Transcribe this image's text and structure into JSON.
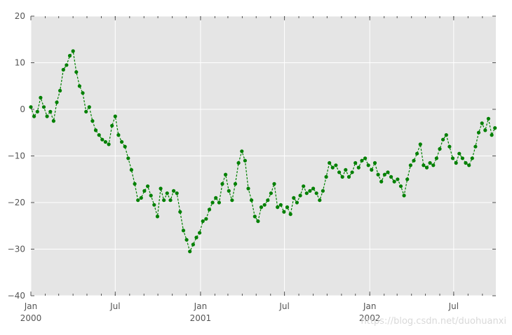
{
  "chart_data": {
    "type": "line",
    "title": "",
    "xlabel": "",
    "ylabel": "",
    "ylim": [
      -40,
      20
    ],
    "xlim": [
      "2000-01-01",
      "2002-09-30"
    ],
    "grid": true,
    "background": "#e5e5e5",
    "grid_color": "#ffffff",
    "series_color": "#008000",
    "y_ticks": [
      "−40",
      "−30",
      "−20",
      "−10",
      "0",
      "10",
      "20"
    ],
    "y_tick_values": [
      -40,
      -30,
      -20,
      -10,
      0,
      10,
      20
    ],
    "x_ticks": [
      {
        "date": "2000-01-01",
        "month": "Jan",
        "year": "2000"
      },
      {
        "date": "2000-07-01",
        "month": "Jul",
        "year": ""
      },
      {
        "date": "2001-01-01",
        "month": "Jan",
        "year": "2001"
      },
      {
        "date": "2001-07-01",
        "month": "Jul",
        "year": ""
      },
      {
        "date": "2002-01-01",
        "month": "Jan",
        "year": "2002"
      },
      {
        "date": "2002-07-01",
        "month": "Jul",
        "year": ""
      }
    ],
    "series": [
      {
        "points": [
          [
            "2000-01-01",
            0.5
          ],
          [
            "2000-01-08",
            -1.5
          ],
          [
            "2000-01-15",
            -0.5
          ],
          [
            "2000-01-22",
            2.5
          ],
          [
            "2000-01-29",
            0.5
          ],
          [
            "2000-02-05",
            -1.5
          ],
          [
            "2000-02-12",
            -0.5
          ],
          [
            "2000-02-19",
            -2.5
          ],
          [
            "2000-02-26",
            1.5
          ],
          [
            "2000-03-04",
            4.0
          ],
          [
            "2000-03-11",
            8.5
          ],
          [
            "2000-03-18",
            9.5
          ],
          [
            "2000-03-25",
            11.5
          ],
          [
            "2000-04-01",
            12.5
          ],
          [
            "2000-04-08",
            8.0
          ],
          [
            "2000-04-15",
            5.0
          ],
          [
            "2000-04-22",
            3.5
          ],
          [
            "2000-04-29",
            -0.5
          ],
          [
            "2000-05-06",
            0.5
          ],
          [
            "2000-05-13",
            -2.5
          ],
          [
            "2000-05-20",
            -4.5
          ],
          [
            "2000-05-27",
            -5.5
          ],
          [
            "2000-06-03",
            -6.5
          ],
          [
            "2000-06-10",
            -7.0
          ],
          [
            "2000-06-17",
            -7.5
          ],
          [
            "2000-06-24",
            -3.5
          ],
          [
            "2000-07-01",
            -1.5
          ],
          [
            "2000-07-08",
            -5.5
          ],
          [
            "2000-07-15",
            -7.0
          ],
          [
            "2000-07-22",
            -8.0
          ],
          [
            "2000-07-29",
            -10.5
          ],
          [
            "2000-08-05",
            -13.0
          ],
          [
            "2000-08-12",
            -16.0
          ],
          [
            "2000-08-19",
            -19.5
          ],
          [
            "2000-08-26",
            -19.0
          ],
          [
            "2000-09-02",
            -17.5
          ],
          [
            "2000-09-09",
            -16.5
          ],
          [
            "2000-09-16",
            -18.5
          ],
          [
            "2000-09-23",
            -20.5
          ],
          [
            "2000-09-30",
            -23.0
          ],
          [
            "2000-10-07",
            -17.0
          ],
          [
            "2000-10-14",
            -19.5
          ],
          [
            "2000-10-21",
            -18.0
          ],
          [
            "2000-10-28",
            -19.5
          ],
          [
            "2000-11-04",
            -17.5
          ],
          [
            "2000-11-11",
            -18.0
          ],
          [
            "2000-11-18",
            -22.0
          ],
          [
            "2000-11-25",
            -26.0
          ],
          [
            "2000-12-02",
            -28.0
          ],
          [
            "2000-12-09",
            -30.5
          ],
          [
            "2000-12-16",
            -29.0
          ],
          [
            "2000-12-23",
            -27.5
          ],
          [
            "2000-12-30",
            -26.5
          ],
          [
            "2001-01-06",
            -24.0
          ],
          [
            "2001-01-13",
            -23.5
          ],
          [
            "2001-01-20",
            -21.5
          ],
          [
            "2001-01-27",
            -20.0
          ],
          [
            "2001-02-03",
            -19.0
          ],
          [
            "2001-02-10",
            -20.0
          ],
          [
            "2001-02-17",
            -16.0
          ],
          [
            "2001-02-24",
            -14.0
          ],
          [
            "2001-03-03",
            -17.5
          ],
          [
            "2001-03-10",
            -19.5
          ],
          [
            "2001-03-17",
            -16.0
          ],
          [
            "2001-03-24",
            -11.5
          ],
          [
            "2001-03-31",
            -9.0
          ],
          [
            "2001-04-07",
            -11.0
          ],
          [
            "2001-04-14",
            -17.0
          ],
          [
            "2001-04-21",
            -19.5
          ],
          [
            "2001-04-28",
            -23.0
          ],
          [
            "2001-05-05",
            -24.0
          ],
          [
            "2001-05-12",
            -21.0
          ],
          [
            "2001-05-19",
            -20.5
          ],
          [
            "2001-05-26",
            -19.5
          ],
          [
            "2001-06-02",
            -18.0
          ],
          [
            "2001-06-09",
            -16.0
          ],
          [
            "2001-06-16",
            -21.0
          ],
          [
            "2001-06-23",
            -20.5
          ],
          [
            "2001-06-30",
            -22.0
          ],
          [
            "2001-07-07",
            -21.0
          ],
          [
            "2001-07-14",
            -22.5
          ],
          [
            "2001-07-21",
            -19.0
          ],
          [
            "2001-07-28",
            -20.0
          ],
          [
            "2001-08-04",
            -18.5
          ],
          [
            "2001-08-11",
            -16.5
          ],
          [
            "2001-08-18",
            -18.0
          ],
          [
            "2001-08-25",
            -17.5
          ],
          [
            "2001-09-01",
            -17.0
          ],
          [
            "2001-09-08",
            -18.0
          ],
          [
            "2001-09-15",
            -19.5
          ],
          [
            "2001-09-22",
            -17.5
          ],
          [
            "2001-09-29",
            -14.5
          ],
          [
            "2001-10-06",
            -11.5
          ],
          [
            "2001-10-13",
            -12.5
          ],
          [
            "2001-10-20",
            -12.0
          ],
          [
            "2001-10-27",
            -13.5
          ],
          [
            "2001-11-03",
            -14.5
          ],
          [
            "2001-11-10",
            -13.0
          ],
          [
            "2001-11-17",
            -14.5
          ],
          [
            "2001-11-24",
            -13.5
          ],
          [
            "2001-12-01",
            -11.5
          ],
          [
            "2001-12-08",
            -12.5
          ],
          [
            "2001-12-15",
            -11.0
          ],
          [
            "2001-12-22",
            -10.5
          ],
          [
            "2001-12-29",
            -12.0
          ],
          [
            "2002-01-05",
            -13.0
          ],
          [
            "2002-01-12",
            -11.5
          ],
          [
            "2002-01-19",
            -14.0
          ],
          [
            "2002-01-26",
            -15.5
          ],
          [
            "2002-02-02",
            -14.0
          ],
          [
            "2002-02-09",
            -13.5
          ],
          [
            "2002-02-16",
            -14.5
          ],
          [
            "2002-02-23",
            -15.5
          ],
          [
            "2002-03-02",
            -15.0
          ],
          [
            "2002-03-09",
            -16.5
          ],
          [
            "2002-03-16",
            -18.5
          ],
          [
            "2002-03-23",
            -15.0
          ],
          [
            "2002-03-30",
            -12.0
          ],
          [
            "2002-04-06",
            -11.0
          ],
          [
            "2002-04-13",
            -9.5
          ],
          [
            "2002-04-20",
            -7.5
          ],
          [
            "2002-04-27",
            -12.0
          ],
          [
            "2002-05-04",
            -12.5
          ],
          [
            "2002-05-11",
            -11.5
          ],
          [
            "2002-05-18",
            -12.0
          ],
          [
            "2002-05-25",
            -10.5
          ],
          [
            "2002-06-01",
            -8.5
          ],
          [
            "2002-06-08",
            -6.5
          ],
          [
            "2002-06-15",
            -5.5
          ],
          [
            "2002-06-22",
            -8.0
          ],
          [
            "2002-06-29",
            -10.5
          ],
          [
            "2002-07-06",
            -11.5
          ],
          [
            "2002-07-13",
            -9.5
          ],
          [
            "2002-07-20",
            -10.5
          ],
          [
            "2002-07-27",
            -11.5
          ],
          [
            "2002-08-03",
            -12.0
          ],
          [
            "2002-08-10",
            -10.5
          ],
          [
            "2002-08-17",
            -8.0
          ],
          [
            "2002-08-24",
            -5.0
          ],
          [
            "2002-08-31",
            -3.0
          ],
          [
            "2002-09-07",
            -4.5
          ],
          [
            "2002-09-14",
            -2.0
          ],
          [
            "2002-09-21",
            -5.5
          ],
          [
            "2002-09-28",
            -4.0
          ]
        ]
      }
    ]
  },
  "watermark": "https://blog.csdn.net/duohuanxi"
}
